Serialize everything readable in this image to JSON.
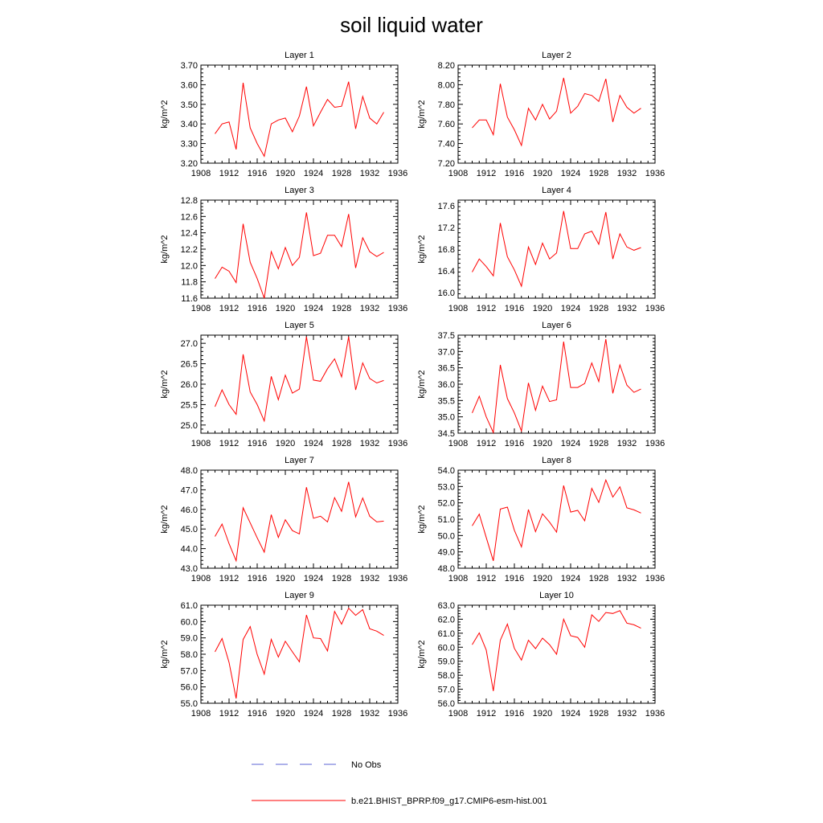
{
  "figure": {
    "title": "soil liquid water",
    "legend": [
      {
        "label": "No Obs",
        "color": "#5b63d6",
        "style": "dashed"
      },
      {
        "label": "b.e21.BHIST_BPRP.f09_g17.CMIP6-esm-hist.001",
        "color": "#ff0000",
        "style": "solid"
      }
    ]
  },
  "chart_data": [
    {
      "type": "line",
      "title": "Layer 1",
      "ylabel": "kg/m^2",
      "xlim": [
        1908,
        1936
      ],
      "xticks": [
        1908,
        1912,
        1916,
        1920,
        1924,
        1928,
        1932,
        1936
      ],
      "ylim": [
        3.2,
        3.7
      ],
      "yticks": [
        3.2,
        3.3,
        3.4,
        3.5,
        3.6,
        3.7
      ],
      "ydec": 2,
      "x": [
        1910,
        1911,
        1912,
        1913,
        1914,
        1915,
        1916,
        1917,
        1918,
        1919,
        1920,
        1921,
        1922,
        1923,
        1924,
        1925,
        1926,
        1927,
        1928,
        1929,
        1930,
        1931,
        1932,
        1933,
        1934
      ],
      "series": [
        {
          "color": "#ff0000",
          "values": [
            3.35,
            3.4,
            3.41,
            3.27,
            3.61,
            3.38,
            3.3,
            3.235,
            3.4,
            3.42,
            3.43,
            3.36,
            3.44,
            3.59,
            3.39,
            3.46,
            3.525,
            3.485,
            3.49,
            3.615,
            3.375,
            3.54,
            3.43,
            3.4,
            3.46
          ]
        }
      ]
    },
    {
      "type": "line",
      "title": "Layer 2",
      "ylabel": "kg/m^2",
      "xlim": [
        1908,
        1936
      ],
      "xticks": [
        1908,
        1912,
        1916,
        1920,
        1924,
        1928,
        1932,
        1936
      ],
      "ylim": [
        7.2,
        8.2
      ],
      "yticks": [
        7.2,
        7.4,
        7.6,
        7.8,
        8.0,
        8.2
      ],
      "ydec": 2,
      "x": [
        1910,
        1911,
        1912,
        1913,
        1914,
        1915,
        1916,
        1917,
        1918,
        1919,
        1920,
        1921,
        1922,
        1923,
        1924,
        1925,
        1926,
        1927,
        1928,
        1929,
        1930,
        1931,
        1932,
        1933,
        1934
      ],
      "series": [
        {
          "color": "#ff0000",
          "values": [
            7.56,
            7.64,
            7.64,
            7.49,
            8.01,
            7.67,
            7.54,
            7.38,
            7.76,
            7.64,
            7.8,
            7.65,
            7.73,
            8.07,
            7.71,
            7.78,
            7.91,
            7.89,
            7.83,
            8.06,
            7.62,
            7.89,
            7.77,
            7.71,
            7.76
          ]
        }
      ]
    },
    {
      "type": "line",
      "title": "Layer 3",
      "ylabel": "kg/m^2",
      "xlim": [
        1908,
        1936
      ],
      "xticks": [
        1908,
        1912,
        1916,
        1920,
        1924,
        1928,
        1932,
        1936
      ],
      "ylim": [
        11.6,
        12.8
      ],
      "yticks": [
        11.6,
        11.8,
        12.0,
        12.2,
        12.4,
        12.6,
        12.8
      ],
      "ydec": 1,
      "x": [
        1910,
        1911,
        1912,
        1913,
        1914,
        1915,
        1916,
        1917,
        1918,
        1919,
        1920,
        1921,
        1922,
        1923,
        1924,
        1925,
        1926,
        1927,
        1928,
        1929,
        1930,
        1931,
        1932,
        1933,
        1934
      ],
      "series": [
        {
          "color": "#ff0000",
          "values": [
            11.84,
            11.98,
            11.93,
            11.79,
            12.51,
            12.04,
            11.84,
            11.6,
            12.17,
            11.96,
            12.22,
            12.0,
            12.1,
            12.65,
            12.12,
            12.15,
            12.37,
            12.37,
            12.23,
            12.63,
            11.97,
            12.34,
            12.17,
            12.11,
            12.16
          ]
        }
      ]
    },
    {
      "type": "line",
      "title": "Layer 4",
      "ylabel": "kg/m^2",
      "xlim": [
        1908,
        1936
      ],
      "xticks": [
        1908,
        1912,
        1916,
        1920,
        1924,
        1928,
        1932,
        1936
      ],
      "ylim": [
        15.9,
        17.7
      ],
      "yticks": [
        16.0,
        16.4,
        16.8,
        17.2,
        17.6
      ],
      "ydec": 1,
      "x": [
        1910,
        1911,
        1912,
        1913,
        1914,
        1915,
        1916,
        1917,
        1918,
        1919,
        1920,
        1921,
        1922,
        1923,
        1924,
        1925,
        1926,
        1927,
        1928,
        1929,
        1930,
        1931,
        1932,
        1933,
        1934
      ],
      "series": [
        {
          "color": "#ff0000",
          "values": [
            16.38,
            16.62,
            16.48,
            16.31,
            17.28,
            16.66,
            16.42,
            16.12,
            16.84,
            16.52,
            16.91,
            16.62,
            16.73,
            17.5,
            16.81,
            16.81,
            17.08,
            17.13,
            16.89,
            17.48,
            16.62,
            17.08,
            16.84,
            16.78,
            16.83
          ]
        }
      ]
    },
    {
      "type": "line",
      "title": "Layer 5",
      "ylabel": "kg/m^2",
      "xlim": [
        1908,
        1936
      ],
      "xticks": [
        1908,
        1912,
        1916,
        1920,
        1924,
        1928,
        1932,
        1936
      ],
      "ylim": [
        24.8,
        27.2
      ],
      "yticks": [
        25.0,
        25.5,
        26.0,
        26.5,
        27.0
      ],
      "ydec": 1,
      "x": [
        1910,
        1911,
        1912,
        1913,
        1914,
        1915,
        1916,
        1917,
        1918,
        1919,
        1920,
        1921,
        1922,
        1923,
        1924,
        1925,
        1926,
        1927,
        1928,
        1929,
        1930,
        1931,
        1932,
        1933,
        1934
      ],
      "series": [
        {
          "color": "#ff0000",
          "values": [
            25.45,
            25.86,
            25.5,
            25.26,
            26.73,
            25.81,
            25.5,
            25.1,
            26.19,
            25.62,
            26.22,
            25.78,
            25.88,
            27.16,
            26.1,
            26.07,
            26.38,
            26.62,
            26.18,
            27.16,
            25.86,
            26.52,
            26.14,
            26.03,
            26.09
          ]
        }
      ]
    },
    {
      "type": "line",
      "title": "Layer 6",
      "ylabel": "kg/m^2",
      "xlim": [
        1908,
        1936
      ],
      "xticks": [
        1908,
        1912,
        1916,
        1920,
        1924,
        1928,
        1932,
        1936
      ],
      "ylim": [
        34.5,
        37.5
      ],
      "yticks": [
        34.5,
        35.0,
        35.5,
        36.0,
        36.5,
        37.0,
        37.5
      ],
      "ydec": 1,
      "x": [
        1910,
        1911,
        1912,
        1913,
        1914,
        1915,
        1916,
        1917,
        1918,
        1919,
        1920,
        1921,
        1922,
        1923,
        1924,
        1925,
        1926,
        1927,
        1928,
        1929,
        1930,
        1931,
        1932,
        1933,
        1934
      ],
      "series": [
        {
          "color": "#ff0000",
          "values": [
            35.12,
            35.63,
            35.0,
            34.52,
            36.59,
            35.56,
            35.12,
            34.57,
            36.04,
            35.2,
            35.94,
            35.47,
            35.52,
            37.3,
            35.9,
            35.9,
            36.02,
            36.65,
            36.08,
            37.38,
            35.72,
            36.59,
            35.97,
            35.75,
            35.85
          ]
        }
      ]
    },
    {
      "type": "line",
      "title": "Layer 7",
      "ylabel": "kg/m^2",
      "xlim": [
        1908,
        1936
      ],
      "xticks": [
        1908,
        1912,
        1916,
        1920,
        1924,
        1928,
        1932,
        1936
      ],
      "ylim": [
        43.0,
        48.0
      ],
      "yticks": [
        43.0,
        44.0,
        45.0,
        46.0,
        47.0,
        48.0
      ],
      "ydec": 1,
      "x": [
        1910,
        1911,
        1912,
        1913,
        1914,
        1915,
        1916,
        1917,
        1918,
        1919,
        1920,
        1921,
        1922,
        1923,
        1924,
        1925,
        1926,
        1927,
        1928,
        1929,
        1930,
        1931,
        1932,
        1933,
        1934
      ],
      "series": [
        {
          "color": "#ff0000",
          "values": [
            44.62,
            45.25,
            44.25,
            43.38,
            46.08,
            45.31,
            44.55,
            43.82,
            45.73,
            44.57,
            45.47,
            44.92,
            44.75,
            47.13,
            45.55,
            45.65,
            45.36,
            46.6,
            45.9,
            47.4,
            45.62,
            46.58,
            45.65,
            45.36,
            45.4
          ]
        }
      ]
    },
    {
      "type": "line",
      "title": "Layer 8",
      "ylabel": "kg/m^2",
      "xlim": [
        1908,
        1936
      ],
      "xticks": [
        1908,
        1912,
        1916,
        1920,
        1924,
        1928,
        1932,
        1936
      ],
      "ylim": [
        48.0,
        54.0
      ],
      "yticks": [
        48.0,
        49.0,
        50.0,
        51.0,
        52.0,
        53.0,
        54.0
      ],
      "ydec": 1,
      "x": [
        1910,
        1911,
        1912,
        1913,
        1914,
        1915,
        1916,
        1917,
        1918,
        1919,
        1920,
        1921,
        1922,
        1923,
        1924,
        1925,
        1926,
        1927,
        1928,
        1929,
        1930,
        1931,
        1932,
        1933,
        1934
      ],
      "series": [
        {
          "color": "#ff0000",
          "values": [
            50.59,
            51.31,
            49.88,
            48.45,
            51.62,
            51.74,
            50.32,
            49.31,
            51.59,
            50.24,
            51.33,
            50.82,
            50.21,
            53.06,
            51.44,
            51.54,
            50.9,
            52.89,
            52.03,
            53.4,
            52.35,
            52.98,
            51.7,
            51.57,
            51.38
          ]
        }
      ]
    },
    {
      "type": "line",
      "title": "Layer 9",
      "ylabel": "kg/m^2",
      "xlim": [
        1908,
        1936
      ],
      "xticks": [
        1908,
        1912,
        1916,
        1920,
        1924,
        1928,
        1932,
        1936
      ],
      "ylim": [
        55.0,
        61.0
      ],
      "yticks": [
        55.0,
        56.0,
        57.0,
        58.0,
        59.0,
        60.0,
        61.0
      ],
      "ydec": 1,
      "x": [
        1910,
        1911,
        1912,
        1913,
        1914,
        1915,
        1916,
        1917,
        1918,
        1919,
        1920,
        1921,
        1922,
        1923,
        1924,
        1925,
        1926,
        1927,
        1928,
        1929,
        1930,
        1931,
        1932,
        1933,
        1934
      ],
      "series": [
        {
          "color": "#ff0000",
          "values": [
            58.15,
            58.96,
            57.5,
            55.29,
            58.9,
            59.69,
            57.99,
            56.78,
            58.91,
            57.83,
            58.79,
            58.15,
            57.54,
            60.4,
            59.0,
            58.96,
            58.2,
            60.62,
            59.84,
            60.82,
            60.38,
            60.73,
            59.56,
            59.41,
            59.15
          ]
        }
      ]
    },
    {
      "type": "line",
      "title": "Layer 10",
      "ylabel": "kg/m^2",
      "xlim": [
        1908,
        1936
      ],
      "xticks": [
        1908,
        1912,
        1916,
        1920,
        1924,
        1928,
        1932,
        1936
      ],
      "ylim": [
        56.0,
        63.0
      ],
      "yticks": [
        56.0,
        57.0,
        58.0,
        59.0,
        60.0,
        61.0,
        62.0,
        63.0
      ],
      "ydec": 1,
      "x": [
        1910,
        1911,
        1912,
        1913,
        1914,
        1915,
        1916,
        1917,
        1918,
        1919,
        1920,
        1921,
        1922,
        1923,
        1924,
        1925,
        1926,
        1927,
        1928,
        1929,
        1930,
        1931,
        1932,
        1933,
        1934
      ],
      "series": [
        {
          "color": "#ff0000",
          "values": [
            60.18,
            61.02,
            59.8,
            56.87,
            60.5,
            61.65,
            59.92,
            59.08,
            60.5,
            59.9,
            60.65,
            60.18,
            59.5,
            62.0,
            60.82,
            60.7,
            60.0,
            62.31,
            61.84,
            62.48,
            62.41,
            62.61,
            61.72,
            61.6,
            61.36
          ]
        }
      ]
    }
  ]
}
